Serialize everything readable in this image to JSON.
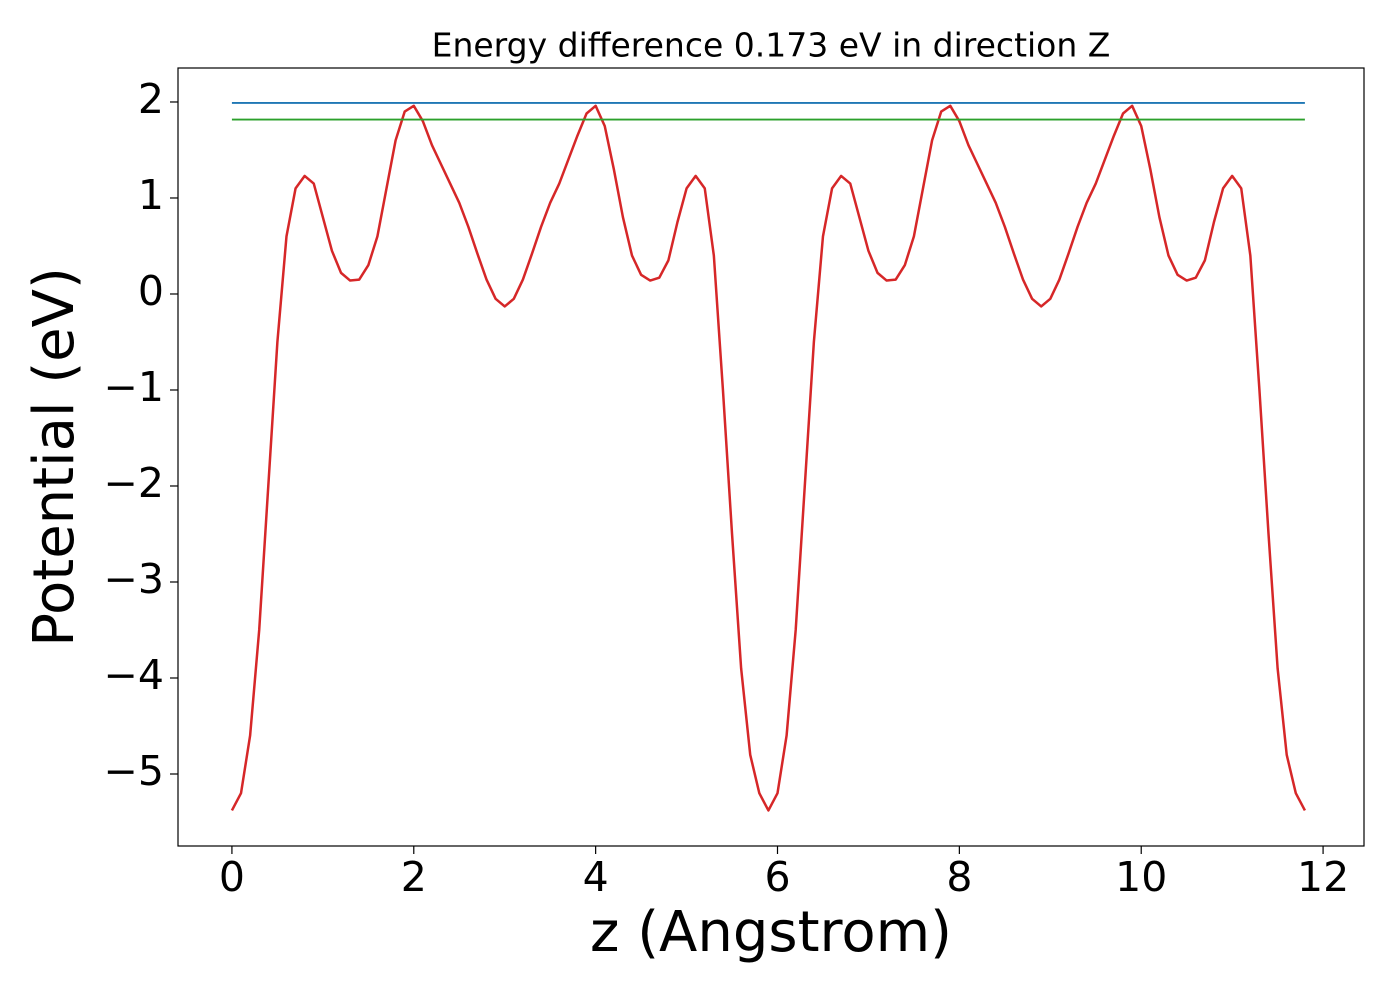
{
  "chart_data": {
    "type": "line",
    "title": "Energy difference 0.173 eV in direction Z",
    "xlabel": "z (Angstrom)",
    "ylabel": "Potential (eV)",
    "xlim": [
      -0.593,
      12.45
    ],
    "ylim": [
      -5.75,
      2.354
    ],
    "xticks": [
      0,
      2,
      4,
      6,
      8,
      10,
      12
    ],
    "yticks": [
      {
        "value": -5,
        "label": "−5"
      },
      {
        "value": -4,
        "label": "−4"
      },
      {
        "value": -3,
        "label": "−3"
      },
      {
        "value": -2,
        "label": "−2"
      },
      {
        "value": -1,
        "label": "−1"
      },
      0,
      1,
      2
    ],
    "grid": false,
    "series": [
      {
        "color": "#d62728",
        "x": [
          0,
          0.1,
          0.2,
          0.3,
          0.4,
          0.5,
          0.6,
          0.7,
          0.8,
          0.9,
          1.0,
          1.1,
          1.2,
          1.3,
          1.4,
          1.5,
          1.6,
          1.7,
          1.8,
          1.9,
          2.0,
          2.1,
          2.2,
          2.3,
          2.4,
          2.5,
          2.6,
          2.7,
          2.8,
          2.9,
          3.0,
          3.1,
          3.2,
          3.3,
          3.4,
          3.5,
          3.6,
          3.7,
          3.8,
          3.9,
          4.0,
          4.1,
          4.2,
          4.3,
          4.4,
          4.5,
          4.6,
          4.7,
          4.8,
          4.9,
          5.0,
          5.1,
          5.2,
          5.3,
          5.4,
          5.5,
          5.6,
          5.7,
          5.8,
          5.9,
          6.0,
          6.1,
          6.2,
          6.3,
          6.4,
          6.5,
          6.6,
          6.7,
          6.8,
          6.9,
          7.0,
          7.1,
          7.2,
          7.3,
          7.4,
          7.5,
          7.6,
          7.7,
          7.8,
          7.9,
          8.0,
          8.1,
          8.2,
          8.3,
          8.4,
          8.5,
          8.6,
          8.7,
          8.8,
          8.9,
          9.0,
          9.1,
          9.2,
          9.3,
          9.4,
          9.5,
          9.6,
          9.7,
          9.8,
          9.9,
          10.0,
          10.1,
          10.2,
          10.3,
          10.4,
          10.5,
          10.6,
          10.7,
          10.8,
          10.9,
          11.0,
          11.1,
          11.2,
          11.3,
          11.4,
          11.5,
          11.6,
          11.7,
          11.8
        ],
        "values": [
          -5.38,
          -5.2,
          -4.6,
          -3.5,
          -2.0,
          -0.5,
          0.6,
          1.1,
          1.23,
          1.15,
          0.8,
          0.45,
          0.22,
          0.14,
          0.15,
          0.3,
          0.6,
          1.1,
          1.6,
          1.9,
          1.96,
          1.8,
          1.55,
          1.35,
          1.15,
          0.95,
          0.7,
          0.42,
          0.15,
          -0.05,
          -0.13,
          -0.05,
          0.15,
          0.42,
          0.7,
          0.95,
          1.15,
          1.4,
          1.65,
          1.88,
          1.96,
          1.75,
          1.3,
          0.8,
          0.4,
          0.2,
          0.14,
          0.17,
          0.35,
          0.75,
          1.1,
          1.23,
          1.1,
          0.4,
          -1.0,
          -2.5,
          -3.9,
          -4.8,
          -5.2,
          -5.38,
          -5.2,
          -4.6,
          -3.5,
          -2.0,
          -0.5,
          0.6,
          1.1,
          1.23,
          1.15,
          0.8,
          0.45,
          0.22,
          0.14,
          0.15,
          0.3,
          0.6,
          1.1,
          1.6,
          1.9,
          1.96,
          1.8,
          1.55,
          1.35,
          1.15,
          0.95,
          0.7,
          0.42,
          0.15,
          -0.05,
          -0.13,
          -0.05,
          0.15,
          0.42,
          0.7,
          0.95,
          1.15,
          1.4,
          1.65,
          1.88,
          1.96,
          1.75,
          1.3,
          0.8,
          0.4,
          0.2,
          0.14,
          0.17,
          0.35,
          0.75,
          1.1,
          1.23,
          1.1,
          0.4,
          -1.0,
          -2.5,
          -3.9,
          -4.8,
          -5.2,
          -5.38
        ]
      },
      {
        "color": "#1f77b4",
        "x": [
          0,
          11.8
        ],
        "values": [
          1.99,
          1.99
        ]
      },
      {
        "color": "#2ca02c",
        "x": [
          0,
          11.8
        ],
        "values": [
          1.817,
          1.817
        ]
      }
    ]
  }
}
